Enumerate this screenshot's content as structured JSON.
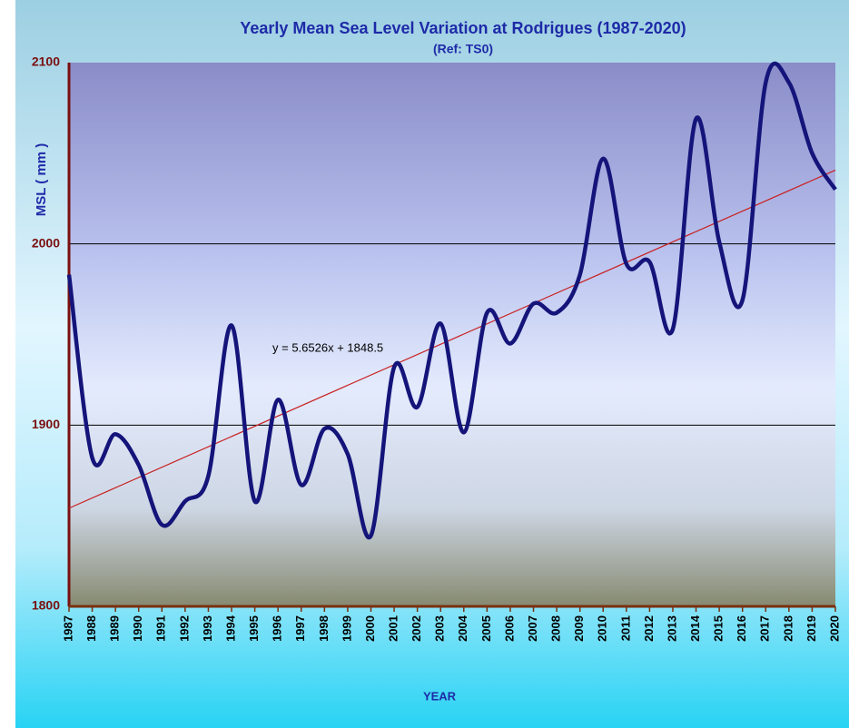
{
  "chart_data": {
    "type": "line",
    "title": "Yearly Mean Sea Level Variation at Rodrigues  (1987-2020)",
    "subtitle": "(Ref: TS0)",
    "x_label": "YEAR",
    "y_label": "MSL ( mm )",
    "categories": [
      "1987",
      "1988",
      "1989",
      "1990",
      "1991",
      "1992",
      "1993",
      "1994",
      "1995",
      "1996",
      "1997",
      "1998",
      "1999",
      "2000",
      "2001",
      "2002",
      "2003",
      "2004",
      "2005",
      "2006",
      "2007",
      "2008",
      "2009",
      "2010",
      "2011",
      "2012",
      "2013",
      "2014",
      "2015",
      "2016",
      "2017",
      "2018",
      "2019",
      "2020"
    ],
    "series": [
      {
        "name": "MSL",
        "color": "#14147a",
        "values": [
          1983,
          1882,
          1895,
          1878,
          1845,
          1858,
          1872,
          1955,
          1858,
          1914,
          1867,
          1898,
          1884,
          1839,
          1932,
          1910,
          1956,
          1896,
          1962,
          1945,
          1967,
          1962,
          1983,
          2047,
          1989,
          1990,
          1953,
          2069,
          2001,
          1969,
          2089,
          2089,
          2050,
          2030
        ]
      }
    ],
    "trendline": {
      "slope": 5.6526,
      "intercept": 1848.5,
      "label": "y = 5.6526x + 1848.5",
      "color": "#c82020"
    },
    "ylim": [
      1800,
      2100
    ],
    "yticks": [
      1800,
      1900,
      2000,
      2100
    ],
    "grid": true
  }
}
